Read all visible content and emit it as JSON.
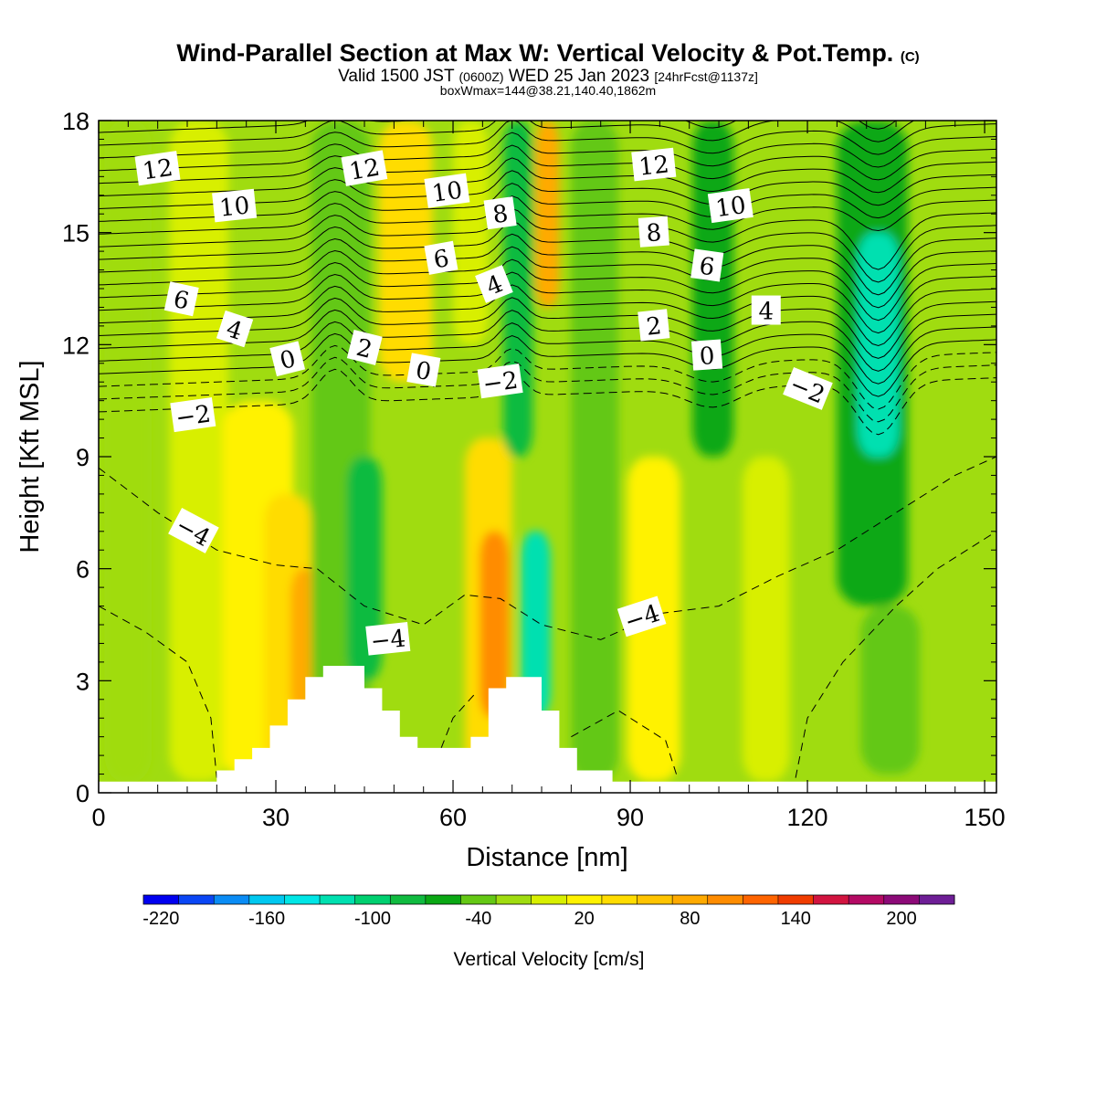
{
  "header": {
    "title": "Wind-Parallel Section at Max W: Vertical Velocity & Pot.Temp.",
    "copyright_mark": "(C)",
    "valid_prefix": "Valid 1500 JST",
    "valid_utc": "(0600Z)",
    "valid_date": "WED 25 Jan 2023",
    "forecast": "[24hrFcst@1137z]",
    "box_info": "boxWmax=144@38.21,140.40,1862m"
  },
  "chart_data": {
    "type": "heatmap",
    "xlabel": "Distance [nm]",
    "ylabel": "Height [Kft MSL]",
    "xlim": [
      0,
      152
    ],
    "ylim": [
      0,
      18
    ],
    "x_ticks": [
      "0",
      "30",
      "60",
      "90",
      "120",
      "150"
    ],
    "y_ticks": [
      "0",
      "3",
      "6",
      "9",
      "12",
      "15",
      "18"
    ],
    "colorbar": {
      "title": "Vertical Velocity [cm/s]",
      "tick_labels": [
        "-220",
        "-160",
        "-100",
        "-40",
        "20",
        "80",
        "140",
        "200"
      ],
      "levels": [
        -220,
        -200,
        -180,
        -160,
        -140,
        -120,
        -100,
        -80,
        -60,
        -40,
        -20,
        0,
        20,
        40,
        60,
        80,
        100,
        120,
        140,
        160,
        180,
        200,
        220
      ],
      "colors": [
        "#0000f0",
        "#0a46f5",
        "#0a8cf5",
        "#00c8f0",
        "#00e6e6",
        "#00e0b0",
        "#00d070",
        "#10bb40",
        "#0aa814",
        "#64c814",
        "#a0dc10",
        "#d8ef00",
        "#fff200",
        "#ffdc00",
        "#ffc400",
        "#ffaa00",
        "#ff8c00",
        "#ff6400",
        "#f03c00",
        "#d21440",
        "#b40a64",
        "#8c0a78",
        "#6e1e96"
      ]
    },
    "velocity_columns": [
      {
        "x": 5,
        "w": 8,
        "zmin": 0.3,
        "zmax": 18,
        "value": -10
      },
      {
        "x": 17,
        "w": 10,
        "zmin": 0.3,
        "zmax": 18,
        "value": 10
      },
      {
        "x": 27,
        "w": 12,
        "zmin": 0.3,
        "zmax": 10.5,
        "value": 30
      },
      {
        "x": 32,
        "w": 8,
        "zmin": 0.3,
        "zmax": 8,
        "value": 50
      },
      {
        "x": 35,
        "w": 5,
        "zmin": 2,
        "zmax": 6,
        "value": 90
      },
      {
        "x": 41,
        "w": 10,
        "zmin": 0,
        "zmax": 18,
        "value": -30
      },
      {
        "x": 45,
        "w": 6,
        "zmin": 3,
        "zmax": 9,
        "value": -70
      },
      {
        "x": 52,
        "w": 9,
        "zmin": 11,
        "zmax": 18,
        "value": 40
      },
      {
        "x": 63,
        "w": 6,
        "zmin": 12,
        "zmax": 18,
        "value": 10
      },
      {
        "x": 66,
        "w": 8,
        "zmin": 0.3,
        "zmax": 9.5,
        "value": 40
      },
      {
        "x": 67,
        "w": 5,
        "zmin": 2,
        "zmax": 7,
        "value": 110
      },
      {
        "x": 71,
        "w": 5,
        "zmin": 9,
        "zmax": 18,
        "value": -70
      },
      {
        "x": 74,
        "w": 5,
        "zmin": 2,
        "zmax": 7,
        "value": -110
      },
      {
        "x": 76,
        "w": 4,
        "zmin": 13,
        "zmax": 18,
        "value": 90
      },
      {
        "x": 84,
        "w": 8,
        "zmin": 0.3,
        "zmax": 18,
        "value": -40
      },
      {
        "x": 94,
        "w": 9,
        "zmin": 0.3,
        "zmax": 9,
        "value": 25
      },
      {
        "x": 104,
        "w": 7,
        "zmin": 9,
        "zmax": 18,
        "value": -50
      },
      {
        "x": 113,
        "w": 8,
        "zmin": 0.3,
        "zmax": 9,
        "value": 10
      },
      {
        "x": 131,
        "w": 12,
        "zmin": 5,
        "zmax": 18,
        "value": -60
      },
      {
        "x": 132,
        "w": 7,
        "zmin": 9,
        "zmax": 15,
        "value": -110
      },
      {
        "x": 134,
        "w": 10,
        "zmin": 0.5,
        "zmax": 5,
        "value": -30
      }
    ],
    "potential_temperature_contours": {
      "labels": [
        {
          "text": "12",
          "x": 10,
          "y": 16.7
        },
        {
          "text": "10",
          "x": 23,
          "y": 15.7
        },
        {
          "text": "6",
          "x": 14,
          "y": 13.2
        },
        {
          "text": "4",
          "x": 23,
          "y": 12.4
        },
        {
          "text": "0",
          "x": 32,
          "y": 11.6
        },
        {
          "text": "-2",
          "x": 16,
          "y": 10.1
        },
        {
          "text": "-4",
          "x": 16,
          "y": 7
        },
        {
          "text": "12",
          "x": 45,
          "y": 16.7
        },
        {
          "text": "10",
          "x": 59,
          "y": 16.1
        },
        {
          "text": "6",
          "x": 58,
          "y": 14.3
        },
        {
          "text": "2",
          "x": 45,
          "y": 11.9
        },
        {
          "text": "0",
          "x": 55,
          "y": 11.3
        },
        {
          "text": "8",
          "x": 68,
          "y": 15.5
        },
        {
          "text": "4",
          "x": 67,
          "y": 13.6
        },
        {
          "text": "-2",
          "x": 68,
          "y": 11.0
        },
        {
          "text": "-4",
          "x": 49,
          "y": 4.1
        },
        {
          "text": "12",
          "x": 94,
          "y": 16.8
        },
        {
          "text": "10",
          "x": 107,
          "y": 15.7
        },
        {
          "text": "8",
          "x": 94,
          "y": 15.0
        },
        {
          "text": "6",
          "x": 103,
          "y": 14.1
        },
        {
          "text": "2",
          "x": 94,
          "y": 12.5
        },
        {
          "text": "0",
          "x": 103,
          "y": 11.7
        },
        {
          "text": "4",
          "x": 113,
          "y": 12.9
        },
        {
          "text": "-2",
          "x": 120,
          "y": 10.8
        },
        {
          "text": "-4",
          "x": 92,
          "y": 4.7
        }
      ]
    },
    "terrain_kft": [
      0.3,
      0.3,
      0.3,
      0.3,
      0.3,
      0.3,
      0.3,
      0.3,
      0.3,
      0.3,
      0.3,
      0.3,
      0.3,
      0.3,
      0.3,
      0.3,
      0.3,
      0.3,
      0.3,
      0.3,
      0.6,
      0.6,
      0.6,
      0.9,
      0.9,
      0.9,
      1.2,
      1.2,
      1.2,
      1.8,
      1.8,
      1.8,
      2.5,
      2.5,
      2.5,
      3.1,
      3.1,
      3.1,
      3.4,
      3.4,
      3.4,
      3.4,
      3.4,
      3.4,
      3.4,
      2.8,
      2.8,
      2.8,
      2.2,
      2.2,
      2.2,
      1.5,
      1.5,
      1.5,
      1.2,
      1.2,
      1.2,
      1.2,
      1.2,
      1.2,
      1.2,
      1.2,
      1.2,
      1.5,
      1.5,
      1.5,
      2.8,
      2.8,
      2.8,
      3.1,
      3.1,
      3.1,
      3.1,
      3.1,
      3.1,
      2.2,
      2.2,
      2.2,
      1.2,
      1.2,
      1.2,
      0.6,
      0.6,
      0.6,
      0.6,
      0.6,
      0.6,
      0.3,
      0.3,
      0.3,
      0.3,
      0.3,
      0.3,
      0.3,
      0.3,
      0.3,
      0.3,
      0.3,
      0.3,
      0.3,
      0.3,
      0.3,
      0.3,
      0.3,
      0.3,
      0.3,
      0.3,
      0.3,
      0.3,
      0.3,
      0.3,
      0.3,
      0.3,
      0.3,
      0.3,
      0.3,
      0.3,
      0.3,
      0.3,
      0.3,
      0.3,
      0.3,
      0.3,
      0.3,
      0.3,
      0.3,
      0.3,
      0.3,
      0.3,
      0.3,
      0.3,
      0.3,
      0.3,
      0.3,
      0.3,
      0.3,
      0.3,
      0.3,
      0.3,
      0.3,
      0.3,
      0.3,
      0.3,
      0.3,
      0.3,
      0.3,
      0.3,
      0.3,
      0.3,
      0.3,
      0.3,
      0.3
    ]
  }
}
